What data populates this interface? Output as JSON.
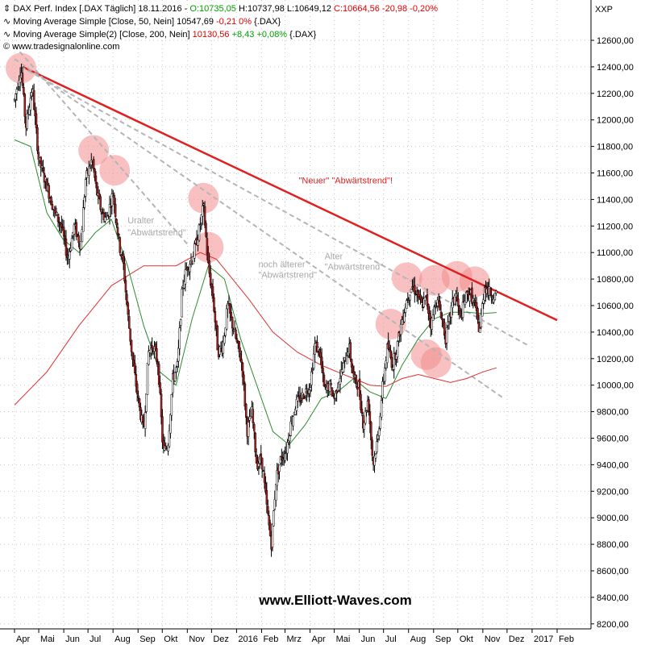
{
  "header": {
    "line1": {
      "icon": "chevron-expand-icon",
      "main": "DAX Perf. Index [.DAX  Täglich]  18.11.2016 - ",
      "open": "O:10735,05",
      "rest": " H:10737,98  L:10649,12 ",
      "close": "C:10664,56 -20,98 -0,20%"
    },
    "line2": {
      "icon": "indicator-wave-icon",
      "main": "Moving Average Simple [Close, 50, Nein]  10547,69 ",
      "change": "-0,21 0%",
      "suffix": " {.DAX}"
    },
    "line3": {
      "icon": "indicator-wave-icon",
      "main": "Moving Average Simple(2) [Close, 200, Nein]  ",
      "value": "10130,56",
      "change": " +8,43 +0,08%",
      "suffix": " {.DAX}"
    },
    "line4": {
      "icon": "copyright-icon",
      "text": "www.tradesignalonline.com"
    }
  },
  "chart_data": {
    "type": "candlestick",
    "instrument": "DAX Perf. Index",
    "symbol_label": "XXP",
    "ylim": [
      8100,
      12800
    ],
    "y_ticks": [
      "12600,00",
      "12400,00",
      "12200,00",
      "12000,00",
      "11800,00",
      "11600,00",
      "11400,00",
      "11200,00",
      "11000,00",
      "10800,00",
      "10600,00",
      "10400,00",
      "10200,00",
      "10000,00",
      "9800,00",
      "9600,00",
      "9400,00",
      "9200,00",
      "9000,00",
      "8800,00",
      "8600,00",
      "8400,00",
      "8200,00"
    ],
    "x_ticks": [
      "Apr",
      "Mai",
      "Jun",
      "Jul",
      "Aug",
      "Sep",
      "Okt",
      "Nov",
      "Dez",
      "2016",
      "Feb",
      "Mrz",
      "Apr",
      "Mai",
      "Jun",
      "Jul",
      "Aug",
      "Sep",
      "Okt",
      "Nov",
      "Dez",
      "2017",
      "Feb"
    ],
    "x_tick_days": [
      0,
      30,
      61,
      91,
      122,
      153,
      183,
      214,
      244,
      275,
      306,
      335,
      366,
      396,
      427,
      457,
      488,
      519,
      549,
      580,
      610,
      641,
      672
    ],
    "last_bar_day": 597,
    "price_path": [
      [
        0,
        12150
      ],
      [
        8,
        12400
      ],
      [
        14,
        11950
      ],
      [
        22,
        12250
      ],
      [
        30,
        11700
      ],
      [
        40,
        11500
      ],
      [
        50,
        11300
      ],
      [
        58,
        11200
      ],
      [
        66,
        10950
      ],
      [
        74,
        11200
      ],
      [
        82,
        11050
      ],
      [
        88,
        11550
      ],
      [
        96,
        11700
      ],
      [
        102,
        11450
      ],
      [
        108,
        11300
      ],
      [
        114,
        11250
      ],
      [
        122,
        11450
      ],
      [
        130,
        11050
      ],
      [
        135,
        10900
      ],
      [
        140,
        10550
      ],
      [
        146,
        10200
      ],
      [
        154,
        9850
      ],
      [
        160,
        9650
      ],
      [
        166,
        10250
      ],
      [
        172,
        10300
      ],
      [
        178,
        10150
      ],
      [
        184,
        9500
      ],
      [
        190,
        9550
      ],
      [
        196,
        10050
      ],
      [
        202,
        10150
      ],
      [
        208,
        10750
      ],
      [
        214,
        10900
      ],
      [
        220,
        10950
      ],
      [
        228,
        11150
      ],
      [
        234,
        11350
      ],
      [
        240,
        10900
      ],
      [
        246,
        10650
      ],
      [
        252,
        10250
      ],
      [
        258,
        10300
      ],
      [
        264,
        10600
      ],
      [
        270,
        10450
      ],
      [
        276,
        10300
      ],
      [
        282,
        10150
      ],
      [
        288,
        9650
      ],
      [
        294,
        9800
      ],
      [
        300,
        9400
      ],
      [
        306,
        9450
      ],
      [
        312,
        9100
      ],
      [
        318,
        8800
      ],
      [
        324,
        9300
      ],
      [
        330,
        9450
      ],
      [
        336,
        9500
      ],
      [
        342,
        9700
      ],
      [
        348,
        9850
      ],
      [
        354,
        9900
      ],
      [
        360,
        9950
      ],
      [
        366,
        10000
      ],
      [
        372,
        10300
      ],
      [
        378,
        10250
      ],
      [
        384,
        9950
      ],
      [
        390,
        10000
      ],
      [
        396,
        9900
      ],
      [
        402,
        10050
      ],
      [
        408,
        10150
      ],
      [
        414,
        10300
      ],
      [
        420,
        10050
      ],
      [
        426,
        10000
      ],
      [
        432,
        9700
      ],
      [
        438,
        9900
      ],
      [
        444,
        9400
      ],
      [
        450,
        9600
      ],
      [
        456,
        10000
      ],
      [
        462,
        10300
      ],
      [
        468,
        10150
      ],
      [
        474,
        10300
      ],
      [
        480,
        10500
      ],
      [
        486,
        10650
      ],
      [
        492,
        10750
      ],
      [
        498,
        10700
      ],
      [
        504,
        10600
      ],
      [
        510,
        10650
      ],
      [
        516,
        10450
      ],
      [
        522,
        10650
      ],
      [
        528,
        10550
      ],
      [
        534,
        10350
      ],
      [
        540,
        10550
      ],
      [
        546,
        10700
      ],
      [
        552,
        10500
      ],
      [
        558,
        10650
      ],
      [
        564,
        10700
      ],
      [
        570,
        10600
      ],
      [
        576,
        10400
      ],
      [
        582,
        10750
      ],
      [
        588,
        10700
      ],
      [
        594,
        10680
      ],
      [
        597,
        10665
      ]
    ],
    "sma50": [
      [
        0,
        11850
      ],
      [
        20,
        11800
      ],
      [
        40,
        11300
      ],
      [
        60,
        11100
      ],
      [
        80,
        11000
      ],
      [
        100,
        11150
      ],
      [
        120,
        11250
      ],
      [
        140,
        10900
      ],
      [
        160,
        10450
      ],
      [
        180,
        10100
      ],
      [
        200,
        10000
      ],
      [
        220,
        10500
      ],
      [
        240,
        10900
      ],
      [
        260,
        10800
      ],
      [
        280,
        10350
      ],
      [
        300,
        10000
      ],
      [
        320,
        9650
      ],
      [
        340,
        9550
      ],
      [
        360,
        9700
      ],
      [
        380,
        9900
      ],
      [
        400,
        9950
      ],
      [
        420,
        10050
      ],
      [
        440,
        9950
      ],
      [
        460,
        9900
      ],
      [
        480,
        10150
      ],
      [
        500,
        10350
      ],
      [
        520,
        10500
      ],
      [
        540,
        10550
      ],
      [
        560,
        10550
      ],
      [
        580,
        10540
      ],
      [
        597,
        10548
      ]
    ],
    "sma200": [
      [
        0,
        9850
      ],
      [
        40,
        10100
      ],
      [
        80,
        10450
      ],
      [
        120,
        10750
      ],
      [
        160,
        10900
      ],
      [
        200,
        10900
      ],
      [
        230,
        11000
      ],
      [
        250,
        10950
      ],
      [
        270,
        10800
      ],
      [
        290,
        10650
      ],
      [
        320,
        10400
      ],
      [
        350,
        10250
      ],
      [
        380,
        10150
      ],
      [
        400,
        10100
      ],
      [
        420,
        10050
      ],
      [
        440,
        10000
      ],
      [
        460,
        9990
      ],
      [
        480,
        10050
      ],
      [
        500,
        10080
      ],
      [
        520,
        10050
      ],
      [
        540,
        10020
      ],
      [
        560,
        10050
      ],
      [
        580,
        10100
      ],
      [
        597,
        10131
      ]
    ],
    "trendlines": [
      {
        "label": "Neuer Abwärtstrend",
        "color": "#e02020",
        "dashed": false,
        "from": [
          10,
          12400
        ],
        "to": [
          672,
          10490
        ]
      },
      {
        "label": "Uralter Abwärtstrend",
        "color": "#b5b5b5",
        "dashed": true,
        "from": [
          0,
          12560
        ],
        "to": [
          216,
          11050
        ]
      },
      {
        "label": "noch älterer Abwärtstrend",
        "color": "#b5b5b5",
        "dashed": true,
        "from": [
          0,
          12460
        ],
        "to": [
          606,
          9900
        ]
      },
      {
        "label": "Alter Abwärtstrend",
        "color": "#b5b5b5",
        "dashed": true,
        "from": [
          8,
          12400
        ],
        "to": [
          636,
          10300
        ]
      }
    ],
    "highlight_circles": [
      [
        8,
        12390
      ],
      [
        98,
        11770
      ],
      [
        124,
        11620
      ],
      [
        234,
        11410
      ],
      [
        240,
        11040
      ],
      [
        466,
        10460
      ],
      [
        486,
        10810
      ],
      [
        510,
        10230
      ],
      [
        520,
        10790
      ],
      [
        522,
        10170
      ],
      [
        548,
        10820
      ],
      [
        570,
        10780
      ]
    ],
    "annotations": [
      {
        "text": "\"Neuer\" \"Abwärtstrend\"!",
        "color": "red",
        "at": [
          352,
          11520
        ]
      },
      {
        "text": "Uralter",
        "color": "gray",
        "at": [
          140,
          11220
        ]
      },
      {
        "text": "\"Abwärtstrend\"",
        "color": "gray",
        "at": [
          140,
          11130
        ]
      },
      {
        "text": "noch älterer",
        "color": "gray",
        "at": [
          302,
          10890
        ]
      },
      {
        "text": "\"Abwärtstrend\"",
        "color": "gray",
        "at": [
          302,
          10810
        ]
      },
      {
        "text": "Alter",
        "color": "gray",
        "at": [
          384,
          10950
        ]
      },
      {
        "text": "\"Abwärtstrend\"",
        "color": "gray",
        "at": [
          384,
          10870
        ]
      }
    ],
    "colors": {
      "candle_up": "#ffffff",
      "candle_down": "#b22222",
      "wick": "#000000",
      "sma50": "#2e8b2e",
      "sma200": "#e03030",
      "trend_new": "#e02020",
      "trend_old": "#b5b5b5",
      "circle": "#f28c8c"
    }
  },
  "watermark": "www.Elliott-Waves.com"
}
